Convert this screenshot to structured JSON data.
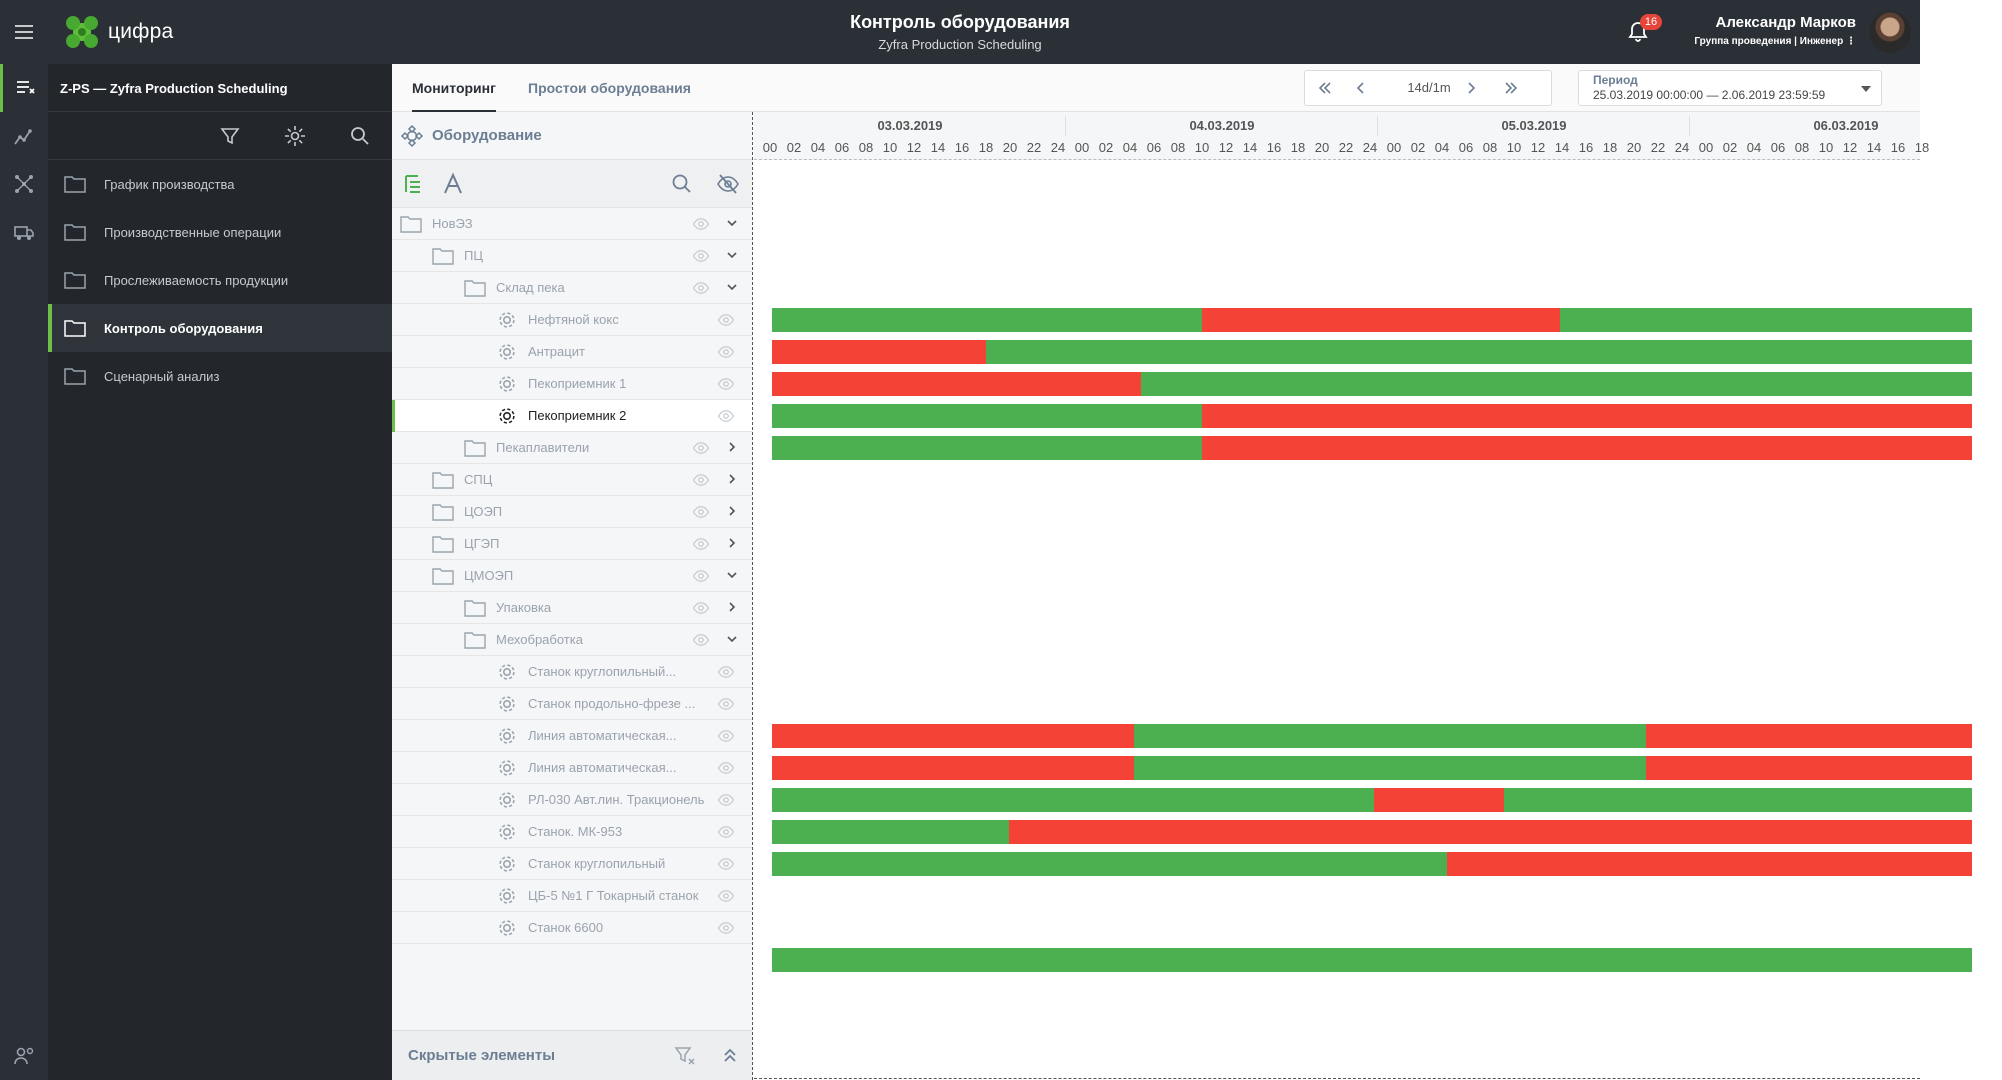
{
  "header": {
    "logo_text": "цифра",
    "title": "Контроль оборудования",
    "subtitle": "Zyfra Production Scheduling",
    "notifications_count": "16",
    "user_name": "Александр Марков",
    "user_role": "Группа проведения | Инженер",
    "user_menu": "⋮"
  },
  "sidebar": {
    "title": "Z-PS — Zyfra Production Scheduling",
    "items": [
      {
        "label": "График производства"
      },
      {
        "label": "Производственные операции"
      },
      {
        "label": "Прослеживаемость продукции"
      },
      {
        "label": "Контроль оборудования"
      },
      {
        "label": "Сценарный анализ"
      }
    ]
  },
  "tabs": [
    {
      "label": "Мониторинг"
    },
    {
      "label": "Простои оборудования"
    }
  ],
  "toolbar": {
    "scale": "14d/1m",
    "period_label": "Период",
    "period_value": "25.03.2019 00:00:00 — 2.06.2019 23:59:59"
  },
  "tree": {
    "title": "Оборудование",
    "hidden_title": "Скрытые элементы",
    "rows": [
      {
        "label": "НовЭЗ"
      },
      {
        "label": "ПЦ"
      },
      {
        "label": "Склад пека"
      },
      {
        "label": "Нефтяной кокс"
      },
      {
        "label": "Антрацит"
      },
      {
        "label": "Пекоприемник 1"
      },
      {
        "label": "Пекоприемник 2"
      },
      {
        "label": "Пекаплавители"
      },
      {
        "label": "СПЦ"
      },
      {
        "label": "ЦОЭП"
      },
      {
        "label": "ЦГЭП"
      },
      {
        "label": "ЦМОЭП"
      },
      {
        "label": "Упаковка"
      },
      {
        "label": "Мехобработка"
      },
      {
        "label": "Станок круглопильный..."
      },
      {
        "label": "Станок продольно-фрезе ..."
      },
      {
        "label": "Линия автоматическая..."
      },
      {
        "label": "Линия автоматическая..."
      },
      {
        "label": "РЛ-030 Авт.лин. Тракционель"
      },
      {
        "label": "Станок. МК-953"
      },
      {
        "label": "Станок круглопильный"
      },
      {
        "label": "ЦБ-5 №1 Г Токарный станок"
      },
      {
        "label": "Станок 6600"
      }
    ]
  },
  "timeline": {
    "days": [
      "03.03.2019",
      "04.03.2019",
      "05.03.2019",
      "06.03.2019"
    ],
    "hours": [
      "00",
      "02",
      "04",
      "06",
      "08",
      "10",
      "12",
      "14",
      "16",
      "18",
      "20",
      "22",
      "24",
      "00",
      "02",
      "04",
      "06",
      "08",
      "10",
      "12",
      "14",
      "16",
      "18",
      "20",
      "22",
      "24",
      "00",
      "02",
      "04",
      "06",
      "08",
      "10",
      "12",
      "14",
      "16",
      "18",
      "20",
      "22",
      "24",
      "00",
      "02",
      "04",
      "06",
      "08",
      "10",
      "12",
      "14",
      "16",
      "18"
    ],
    "status_colors": {
      "working": "#4caf50",
      "idle": "#f44336"
    }
  }
}
